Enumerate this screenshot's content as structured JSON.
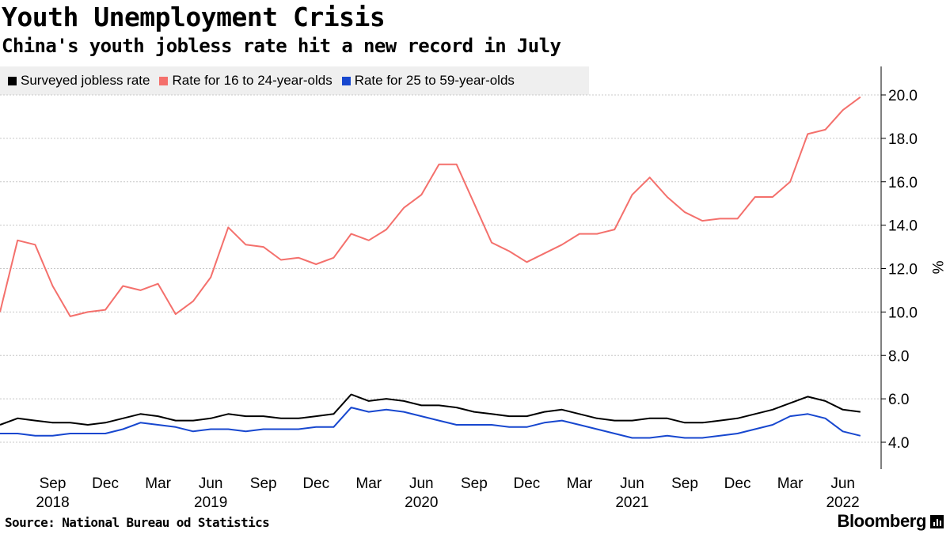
{
  "header": {
    "title": "Youth Unemployment Crisis",
    "subtitle": "China's youth jobless rate hit a new record in July"
  },
  "footer": {
    "source": "Source: National Bureau od Statistics",
    "brand": "Bloomberg"
  },
  "chart_data": {
    "type": "line",
    "title": "Youth Unemployment Crisis",
    "subtitle": "China's youth jobless rate hit a new record in July",
    "ylabel": "%",
    "ylim": [
      2.8,
      21.2
    ],
    "yticks": [
      4.0,
      6.0,
      8.0,
      10.0,
      12.0,
      14.0,
      16.0,
      18.0,
      20.0
    ],
    "ytick_labels": [
      "4.0",
      "6.0",
      "8.0",
      "10.0",
      "12.0",
      "14.0",
      "16.0",
      "18.0",
      "20.0"
    ],
    "y_axis_position": "right",
    "grid": "horizontal dotted",
    "legend_position": "top-left",
    "x_ticks": [
      {
        "month": "2018-09",
        "label": "Sep",
        "year": "2018"
      },
      {
        "month": "2018-12",
        "label": "Dec",
        "year": ""
      },
      {
        "month": "2019-03",
        "label": "Mar",
        "year": ""
      },
      {
        "month": "2019-06",
        "label": "Jun",
        "year": "2019"
      },
      {
        "month": "2019-09",
        "label": "Sep",
        "year": ""
      },
      {
        "month": "2019-12",
        "label": "Dec",
        "year": ""
      },
      {
        "month": "2020-03",
        "label": "Mar",
        "year": ""
      },
      {
        "month": "2020-06",
        "label": "Jun",
        "year": "2020"
      },
      {
        "month": "2020-09",
        "label": "Sep",
        "year": ""
      },
      {
        "month": "2020-12",
        "label": "Dec",
        "year": ""
      },
      {
        "month": "2021-03",
        "label": "Mar",
        "year": ""
      },
      {
        "month": "2021-06",
        "label": "Jun",
        "year": "2021"
      },
      {
        "month": "2021-09",
        "label": "Sep",
        "year": ""
      },
      {
        "month": "2021-12",
        "label": "Dec",
        "year": ""
      },
      {
        "month": "2022-03",
        "label": "Mar",
        "year": ""
      },
      {
        "month": "2022-06",
        "label": "Jun",
        "year": "2022"
      }
    ],
    "x": [
      "2018-06",
      "2018-07",
      "2018-08",
      "2018-09",
      "2018-10",
      "2018-11",
      "2018-12",
      "2019-01",
      "2019-02",
      "2019-03",
      "2019-04",
      "2019-05",
      "2019-06",
      "2019-07",
      "2019-08",
      "2019-09",
      "2019-10",
      "2019-11",
      "2019-12",
      "2020-01",
      "2020-02",
      "2020-03",
      "2020-04",
      "2020-05",
      "2020-06",
      "2020-07",
      "2020-08",
      "2020-09",
      "2020-10",
      "2020-11",
      "2020-12",
      "2021-01",
      "2021-02",
      "2021-03",
      "2021-04",
      "2021-05",
      "2021-06",
      "2021-07",
      "2021-08",
      "2021-09",
      "2021-10",
      "2021-11",
      "2021-12",
      "2022-01",
      "2022-02",
      "2022-03",
      "2022-04",
      "2022-05",
      "2022-06",
      "2022-07"
    ],
    "series": [
      {
        "name": "Surveyed jobless rate",
        "color": "#000000",
        "values": [
          4.8,
          5.1,
          5.0,
          4.9,
          4.9,
          4.8,
          4.9,
          5.1,
          5.3,
          5.2,
          5.0,
          5.0,
          5.1,
          5.3,
          5.2,
          5.2,
          5.1,
          5.1,
          5.2,
          5.3,
          6.2,
          5.9,
          6.0,
          5.9,
          5.7,
          5.7,
          5.6,
          5.4,
          5.3,
          5.2,
          5.2,
          5.4,
          5.5,
          5.3,
          5.1,
          5.0,
          5.0,
          5.1,
          5.1,
          4.9,
          4.9,
          5.0,
          5.1,
          5.3,
          5.5,
          5.8,
          6.1,
          5.9,
          5.5,
          5.4
        ]
      },
      {
        "name": "Rate for 16 to 24-year-olds",
        "color": "#f4706c",
        "values": [
          10.0,
          13.3,
          13.1,
          11.2,
          9.8,
          10.0,
          10.1,
          11.2,
          11.0,
          11.3,
          9.9,
          10.5,
          11.6,
          13.9,
          13.1,
          13.0,
          12.4,
          12.5,
          12.2,
          12.5,
          13.6,
          13.3,
          13.8,
          14.8,
          15.4,
          16.8,
          16.8,
          15.0,
          13.2,
          12.8,
          12.3,
          12.7,
          13.1,
          13.6,
          13.6,
          13.8,
          15.4,
          16.2,
          15.3,
          14.6,
          14.2,
          14.3,
          14.3,
          15.3,
          15.3,
          16.0,
          18.2,
          18.4,
          19.3,
          19.9
        ]
      },
      {
        "name": "Rate for 25 to 59-year-olds",
        "color": "#1747cf",
        "values": [
          4.4,
          4.4,
          4.3,
          4.3,
          4.4,
          4.4,
          4.4,
          4.6,
          4.9,
          4.8,
          4.7,
          4.5,
          4.6,
          4.6,
          4.5,
          4.6,
          4.6,
          4.6,
          4.7,
          4.7,
          5.6,
          5.4,
          5.5,
          5.4,
          5.2,
          5.0,
          4.8,
          4.8,
          4.8,
          4.7,
          4.7,
          4.9,
          5.0,
          4.8,
          4.6,
          4.4,
          4.2,
          4.2,
          4.3,
          4.2,
          4.2,
          4.3,
          4.4,
          4.6,
          4.8,
          5.2,
          5.3,
          5.1,
          4.5,
          4.3
        ]
      }
    ]
  }
}
